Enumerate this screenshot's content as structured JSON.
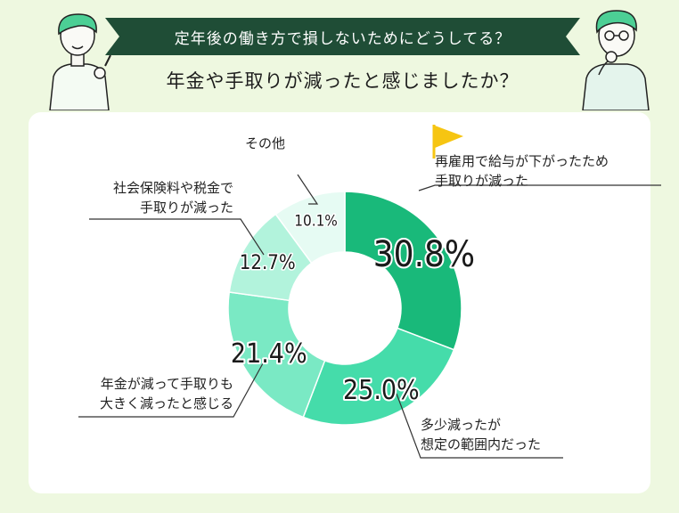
{
  "header": {
    "banner": "定年後の働き方で損しないためにどうしてる？",
    "question": "年金や手取りが減ったと感じましたか？"
  },
  "chart_data": {
    "type": "pie",
    "donut": true,
    "categories": [
      "再雇用で給与が下がったため手取りが減った",
      "多少減ったが想定の範囲内だった",
      "年金が減って手取りも大きく減ったと感じる",
      "社会保険料や税金で手取りが減った",
      "その他"
    ],
    "label_lines": [
      [
        "再雇用で給与が下がったため",
        "手取りが減った"
      ],
      [
        "多少減ったが",
        "想定の範囲内だった"
      ],
      [
        "年金が減って手取りも",
        "大きく減ったと感じる"
      ],
      [
        "社会保険料や税金で",
        "手取りが減った"
      ],
      [
        "その他"
      ]
    ],
    "values": [
      30.8,
      25.0,
      21.4,
      12.7,
      10.1
    ],
    "value_labels": [
      "30.8%",
      "25.0%",
      "21.4%",
      "12.7%",
      "10.1%"
    ],
    "colors": [
      "#19b97a",
      "#45dcaa",
      "#7ae9c4",
      "#b2f3dc",
      "#e6fbf3"
    ],
    "flag_color": "#f6c512",
    "title": "",
    "legend": "none"
  }
}
